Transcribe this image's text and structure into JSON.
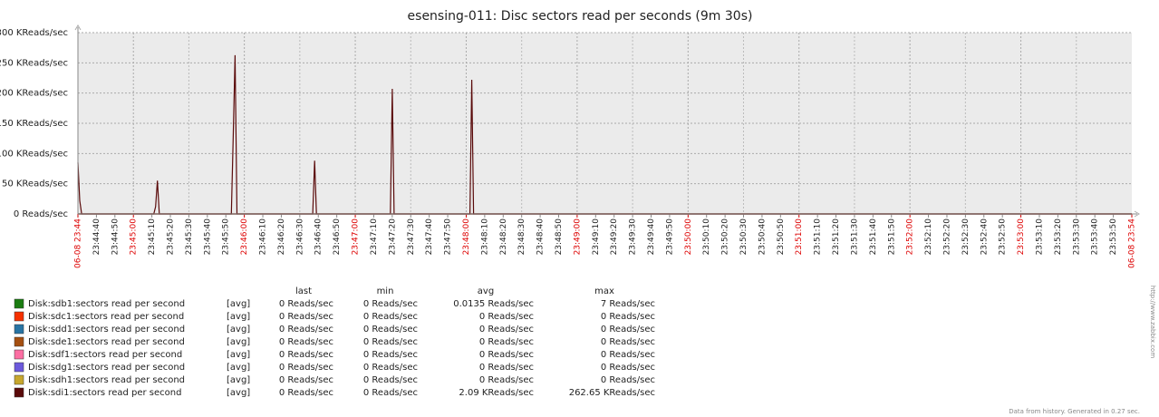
{
  "chart_data": {
    "type": "line",
    "title": "esensing-011: Disc sectors read per seconds (9m 30s)",
    "x": [
      "23:44:30",
      "23:44:31",
      "23:44:32",
      "23:45:11",
      "23:45:12",
      "23:45:13",
      "23:45:14",
      "23:45:53",
      "23:45:54",
      "23:45:55",
      "23:45:56",
      "23:46:37",
      "23:46:38",
      "23:46:39",
      "23:47:19",
      "23:47:20",
      "23:47:21",
      "23:48:02",
      "23:48:03",
      "23:48:04",
      "23:54:00"
    ],
    "xlim": [
      "23:44:30",
      "23:54:00"
    ],
    "xticks": [
      {
        "value": "23:44:30",
        "label": "06-08 23:44"
      },
      "23:44:40",
      "23:44:50",
      "23:45:00",
      "23:45:10",
      "23:45:20",
      "23:45:30",
      "23:45:40",
      "23:45:50",
      "23:46:00",
      "23:46:10",
      "23:46:20",
      "23:46:30",
      "23:46:40",
      "23:46:50",
      "23:47:00",
      "23:47:10",
      "23:47:20",
      "23:47:30",
      "23:47:40",
      "23:47:50",
      "23:48:00",
      "23:48:10",
      "23:48:20",
      "23:48:30",
      "23:48:40",
      "23:48:50",
      "23:49:00",
      "23:49:10",
      "23:49:20",
      "23:49:30",
      "23:49:40",
      "23:49:50",
      "23:50:00",
      "23:50:10",
      "23:50:20",
      "23:50:30",
      "23:50:40",
      "23:50:50",
      "23:51:00",
      "23:51:10",
      "23:51:20",
      "23:51:30",
      "23:51:40",
      "23:51:50",
      "23:52:00",
      "23:52:10",
      "23:52:20",
      "23:52:30",
      "23:52:40",
      "23:52:50",
      "23:53:00",
      "23:53:10",
      "23:53:20",
      "23:53:30",
      "23:53:40",
      "23:53:50",
      {
        "value": "23:54:00",
        "label": "06-08 23:54"
      }
    ],
    "ylim": [
      0,
      300000
    ],
    "yticks": [
      {
        "value": 0,
        "label": "0 Reads/sec"
      },
      {
        "value": 50000,
        "label": "50 KReads/sec"
      },
      {
        "value": 100000,
        "label": "100 KReads/sec"
      },
      {
        "value": 150000,
        "label": "150 KReads/sec"
      },
      {
        "value": 200000,
        "label": "200 KReads/sec"
      },
      {
        "value": 250000,
        "label": "250 KReads/sec"
      },
      {
        "value": 300000,
        "label": "300 KReads/sec"
      }
    ],
    "grid": true,
    "legend_columns": [
      "last",
      "min",
      "avg",
      "max"
    ],
    "series": [
      {
        "name": "Disk:sdb1:sectors read per second",
        "color": "#1a7c11",
        "function": "[avg]",
        "last": "0 Reads/sec",
        "min": "0 Reads/sec",
        "avg": "0.0135 Reads/sec",
        "max": "7 Reads/sec",
        "values": [
          0,
          0,
          0,
          0,
          0,
          0,
          0,
          0,
          0,
          0,
          0,
          0,
          0,
          0,
          0,
          0,
          0,
          0,
          0,
          0,
          0
        ]
      },
      {
        "name": "Disk:sdc1:sectors read per second",
        "color": "#f63100",
        "function": "[avg]",
        "last": "0 Reads/sec",
        "min": "0 Reads/sec",
        "avg": "0 Reads/sec",
        "max": "0 Reads/sec",
        "values": [
          0,
          0,
          0,
          0,
          0,
          0,
          0,
          0,
          0,
          0,
          0,
          0,
          0,
          0,
          0,
          0,
          0,
          0,
          0,
          0,
          0
        ]
      },
      {
        "name": "Disk:sdd1:sectors read per second",
        "color": "#2774a4",
        "function": "[avg]",
        "last": "0 Reads/sec",
        "min": "0 Reads/sec",
        "avg": "0 Reads/sec",
        "max": "0 Reads/sec",
        "values": [
          0,
          0,
          0,
          0,
          0,
          0,
          0,
          0,
          0,
          0,
          0,
          0,
          0,
          0,
          0,
          0,
          0,
          0,
          0,
          0,
          0
        ]
      },
      {
        "name": "Disk:sde1:sectors read per second",
        "color": "#a54f10",
        "function": "[avg]",
        "last": "0 Reads/sec",
        "min": "0 Reads/sec",
        "avg": "0 Reads/sec",
        "max": "0 Reads/sec",
        "values": [
          0,
          0,
          0,
          0,
          0,
          0,
          0,
          0,
          0,
          0,
          0,
          0,
          0,
          0,
          0,
          0,
          0,
          0,
          0,
          0,
          0
        ]
      },
      {
        "name": "Disk:sdf1:sectors read per second",
        "color": "#fc6ea3",
        "function": "[avg]",
        "last": "0 Reads/sec",
        "min": "0 Reads/sec",
        "avg": "0 Reads/sec",
        "max": "0 Reads/sec",
        "values": [
          0,
          0,
          0,
          0,
          0,
          0,
          0,
          0,
          0,
          0,
          0,
          0,
          0,
          0,
          0,
          0,
          0,
          0,
          0,
          0,
          0
        ]
      },
      {
        "name": "Disk:sdg1:sectors read per second",
        "color": "#6c59dc",
        "function": "[avg]",
        "last": "0 Reads/sec",
        "min": "0 Reads/sec",
        "avg": "0 Reads/sec",
        "max": "0 Reads/sec",
        "values": [
          0,
          0,
          0,
          0,
          0,
          0,
          0,
          0,
          0,
          0,
          0,
          0,
          0,
          0,
          0,
          0,
          0,
          0,
          0,
          0,
          0
        ]
      },
      {
        "name": "Disk:sdh1:sectors read per second",
        "color": "#c7a72d",
        "function": "[avg]",
        "last": "0 Reads/sec",
        "min": "0 Reads/sec",
        "avg": "0 Reads/sec",
        "max": "0 Reads/sec",
        "values": [
          0,
          0,
          0,
          0,
          0,
          0,
          0,
          0,
          0,
          0,
          0,
          0,
          0,
          0,
          0,
          0,
          0,
          0,
          0,
          0,
          0
        ]
      },
      {
        "name": "Disk:sdi1:sectors read per second",
        "color": "#5a0a0a",
        "function": "[avg]",
        "last": "0 Reads/sec",
        "min": "0 Reads/sec",
        "avg": "2.09 KReads/sec",
        "max": "262.65 KReads/sec",
        "values": [
          85000,
          22000,
          0,
          0,
          12000,
          55000,
          0,
          0,
          130000,
          262650,
          0,
          0,
          88000,
          0,
          0,
          207000,
          0,
          0,
          222000,
          0,
          0
        ]
      }
    ],
    "footer": "Data from history. Generated in 0.27 sec.",
    "watermark": "http://www.zabbix.com"
  }
}
